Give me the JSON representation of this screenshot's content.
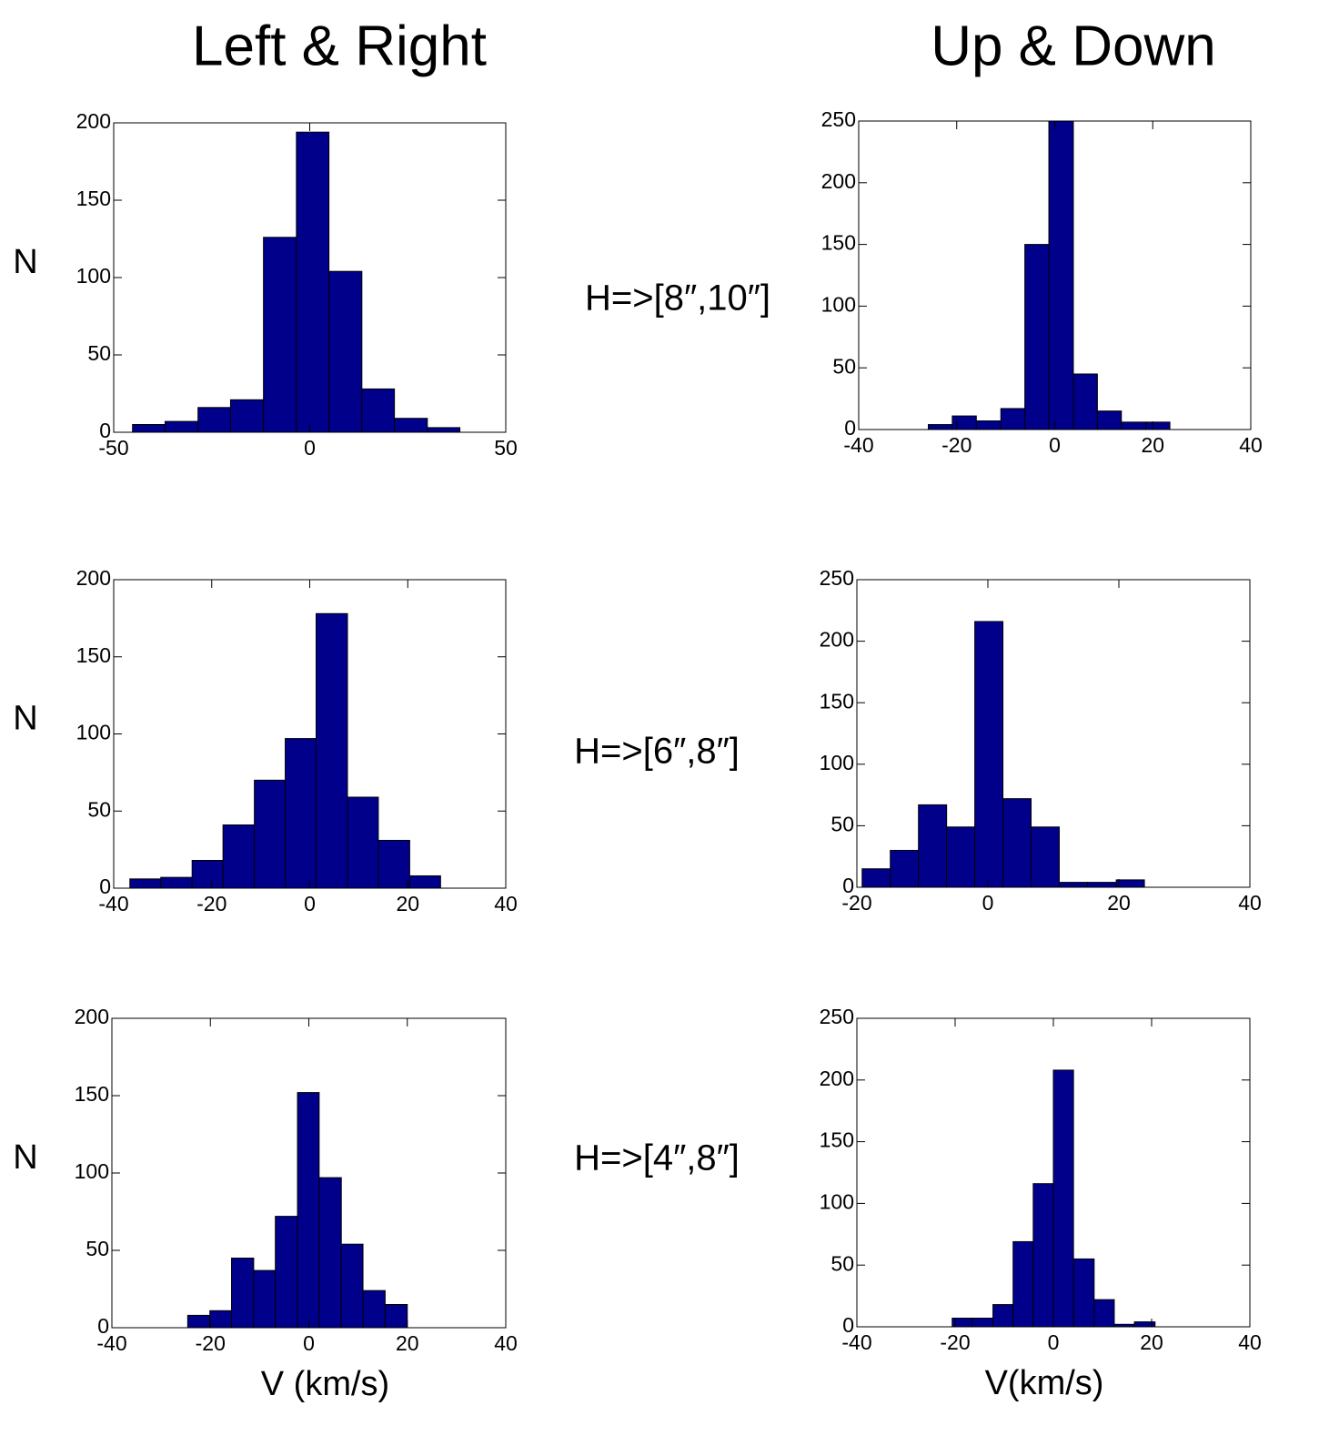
{
  "column_titles": [
    "Left & Right",
    "Up & Down"
  ],
  "row_labels": [
    "H=>[8″,10″]",
    "H=>[6″,8″]",
    "H=>[4″,8″]"
  ],
  "chart_data": [
    {
      "type": "histogram",
      "ylabel": "N",
      "color": "#00008b",
      "bins": [
        -45.2,
        -36.9,
        -28.5,
        -20.2,
        -11.8,
        -3.4,
        4.9,
        13.3,
        21.6,
        30.0,
        38.3
      ],
      "values": [
        5,
        7,
        16,
        21,
        126,
        194,
        104,
        28,
        9,
        3
      ],
      "xlim": [
        -50,
        50
      ],
      "ylim": [
        0,
        200
      ],
      "xticks": [
        -50,
        0,
        50
      ],
      "yticks": [
        0,
        50,
        100,
        150,
        200
      ]
    },
    {
      "type": "histogram",
      "color": "#00008b",
      "bins": [
        -25.8,
        -20.9,
        -16.0,
        -11.0,
        -6.1,
        -1.2,
        3.8,
        8.7,
        13.6,
        18.6,
        23.5
      ],
      "values": [
        4,
        11,
        7,
        17,
        150,
        250,
        45,
        15,
        6,
        6
      ],
      "xlim": [
        -40,
        40
      ],
      "ylim": [
        0,
        250
      ],
      "xticks": [
        -40,
        -20,
        0,
        20,
        40
      ],
      "yticks": [
        0,
        50,
        100,
        150,
        200,
        250
      ]
    },
    {
      "type": "histogram",
      "ylabel": "N",
      "color": "#00008b",
      "bins": [
        -36.7,
        -30.4,
        -24.0,
        -17.7,
        -11.3,
        -5.0,
        1.3,
        7.7,
        14.0,
        20.4,
        26.7
      ],
      "values": [
        6,
        7,
        18,
        41,
        70,
        97,
        178,
        59,
        31,
        8
      ],
      "xlim": [
        -40,
        40
      ],
      "ylim": [
        0,
        200
      ],
      "xticks": [
        -40,
        -20,
        0,
        20,
        40
      ],
      "yticks": [
        0,
        50,
        100,
        150,
        200
      ]
    },
    {
      "type": "histogram",
      "color": "#00008b",
      "bins": [
        -19.2,
        -14.9,
        -10.6,
        -6.3,
        -2.0,
        2.3,
        6.6,
        10.9,
        15.2,
        19.6,
        23.9
      ],
      "values": [
        15,
        30,
        67,
        49,
        216,
        72,
        49,
        4,
        4,
        6
      ],
      "xlim": [
        -20,
        40
      ],
      "ylim": [
        0,
        250
      ],
      "xticks": [
        -20,
        0,
        20,
        40
      ],
      "yticks": [
        0,
        50,
        100,
        150,
        200,
        250
      ]
    },
    {
      "type": "histogram",
      "ylabel": "N",
      "xlabel": "V (km/s)",
      "color": "#00008b",
      "bins": [
        -24.6,
        -20.1,
        -15.7,
        -11.2,
        -6.8,
        -2.3,
        2.1,
        6.6,
        11.0,
        15.5,
        20.0
      ],
      "values": [
        8,
        11,
        45,
        37,
        72,
        152,
        97,
        54,
        24,
        15
      ],
      "xlim": [
        -40,
        40
      ],
      "ylim": [
        0,
        200
      ],
      "xticks": [
        -40,
        -20,
        0,
        20,
        40
      ],
      "yticks": [
        0,
        50,
        100,
        150,
        200
      ]
    },
    {
      "type": "histogram",
      "xlabel": "V(km/s)",
      "color": "#00008b",
      "bins": [
        -20.6,
        -16.5,
        -12.3,
        -8.2,
        -4.1,
        0,
        4.1,
        8.3,
        12.4,
        16.5,
        20.7
      ],
      "values": [
        7,
        7,
        18,
        69,
        116,
        208,
        55,
        22,
        2,
        4
      ],
      "xlim": [
        -40,
        40
      ],
      "ylim": [
        0,
        250
      ],
      "xticks": [
        -40,
        -20,
        0,
        20,
        40
      ],
      "yticks": [
        0,
        50,
        100,
        150,
        200,
        250
      ]
    }
  ]
}
